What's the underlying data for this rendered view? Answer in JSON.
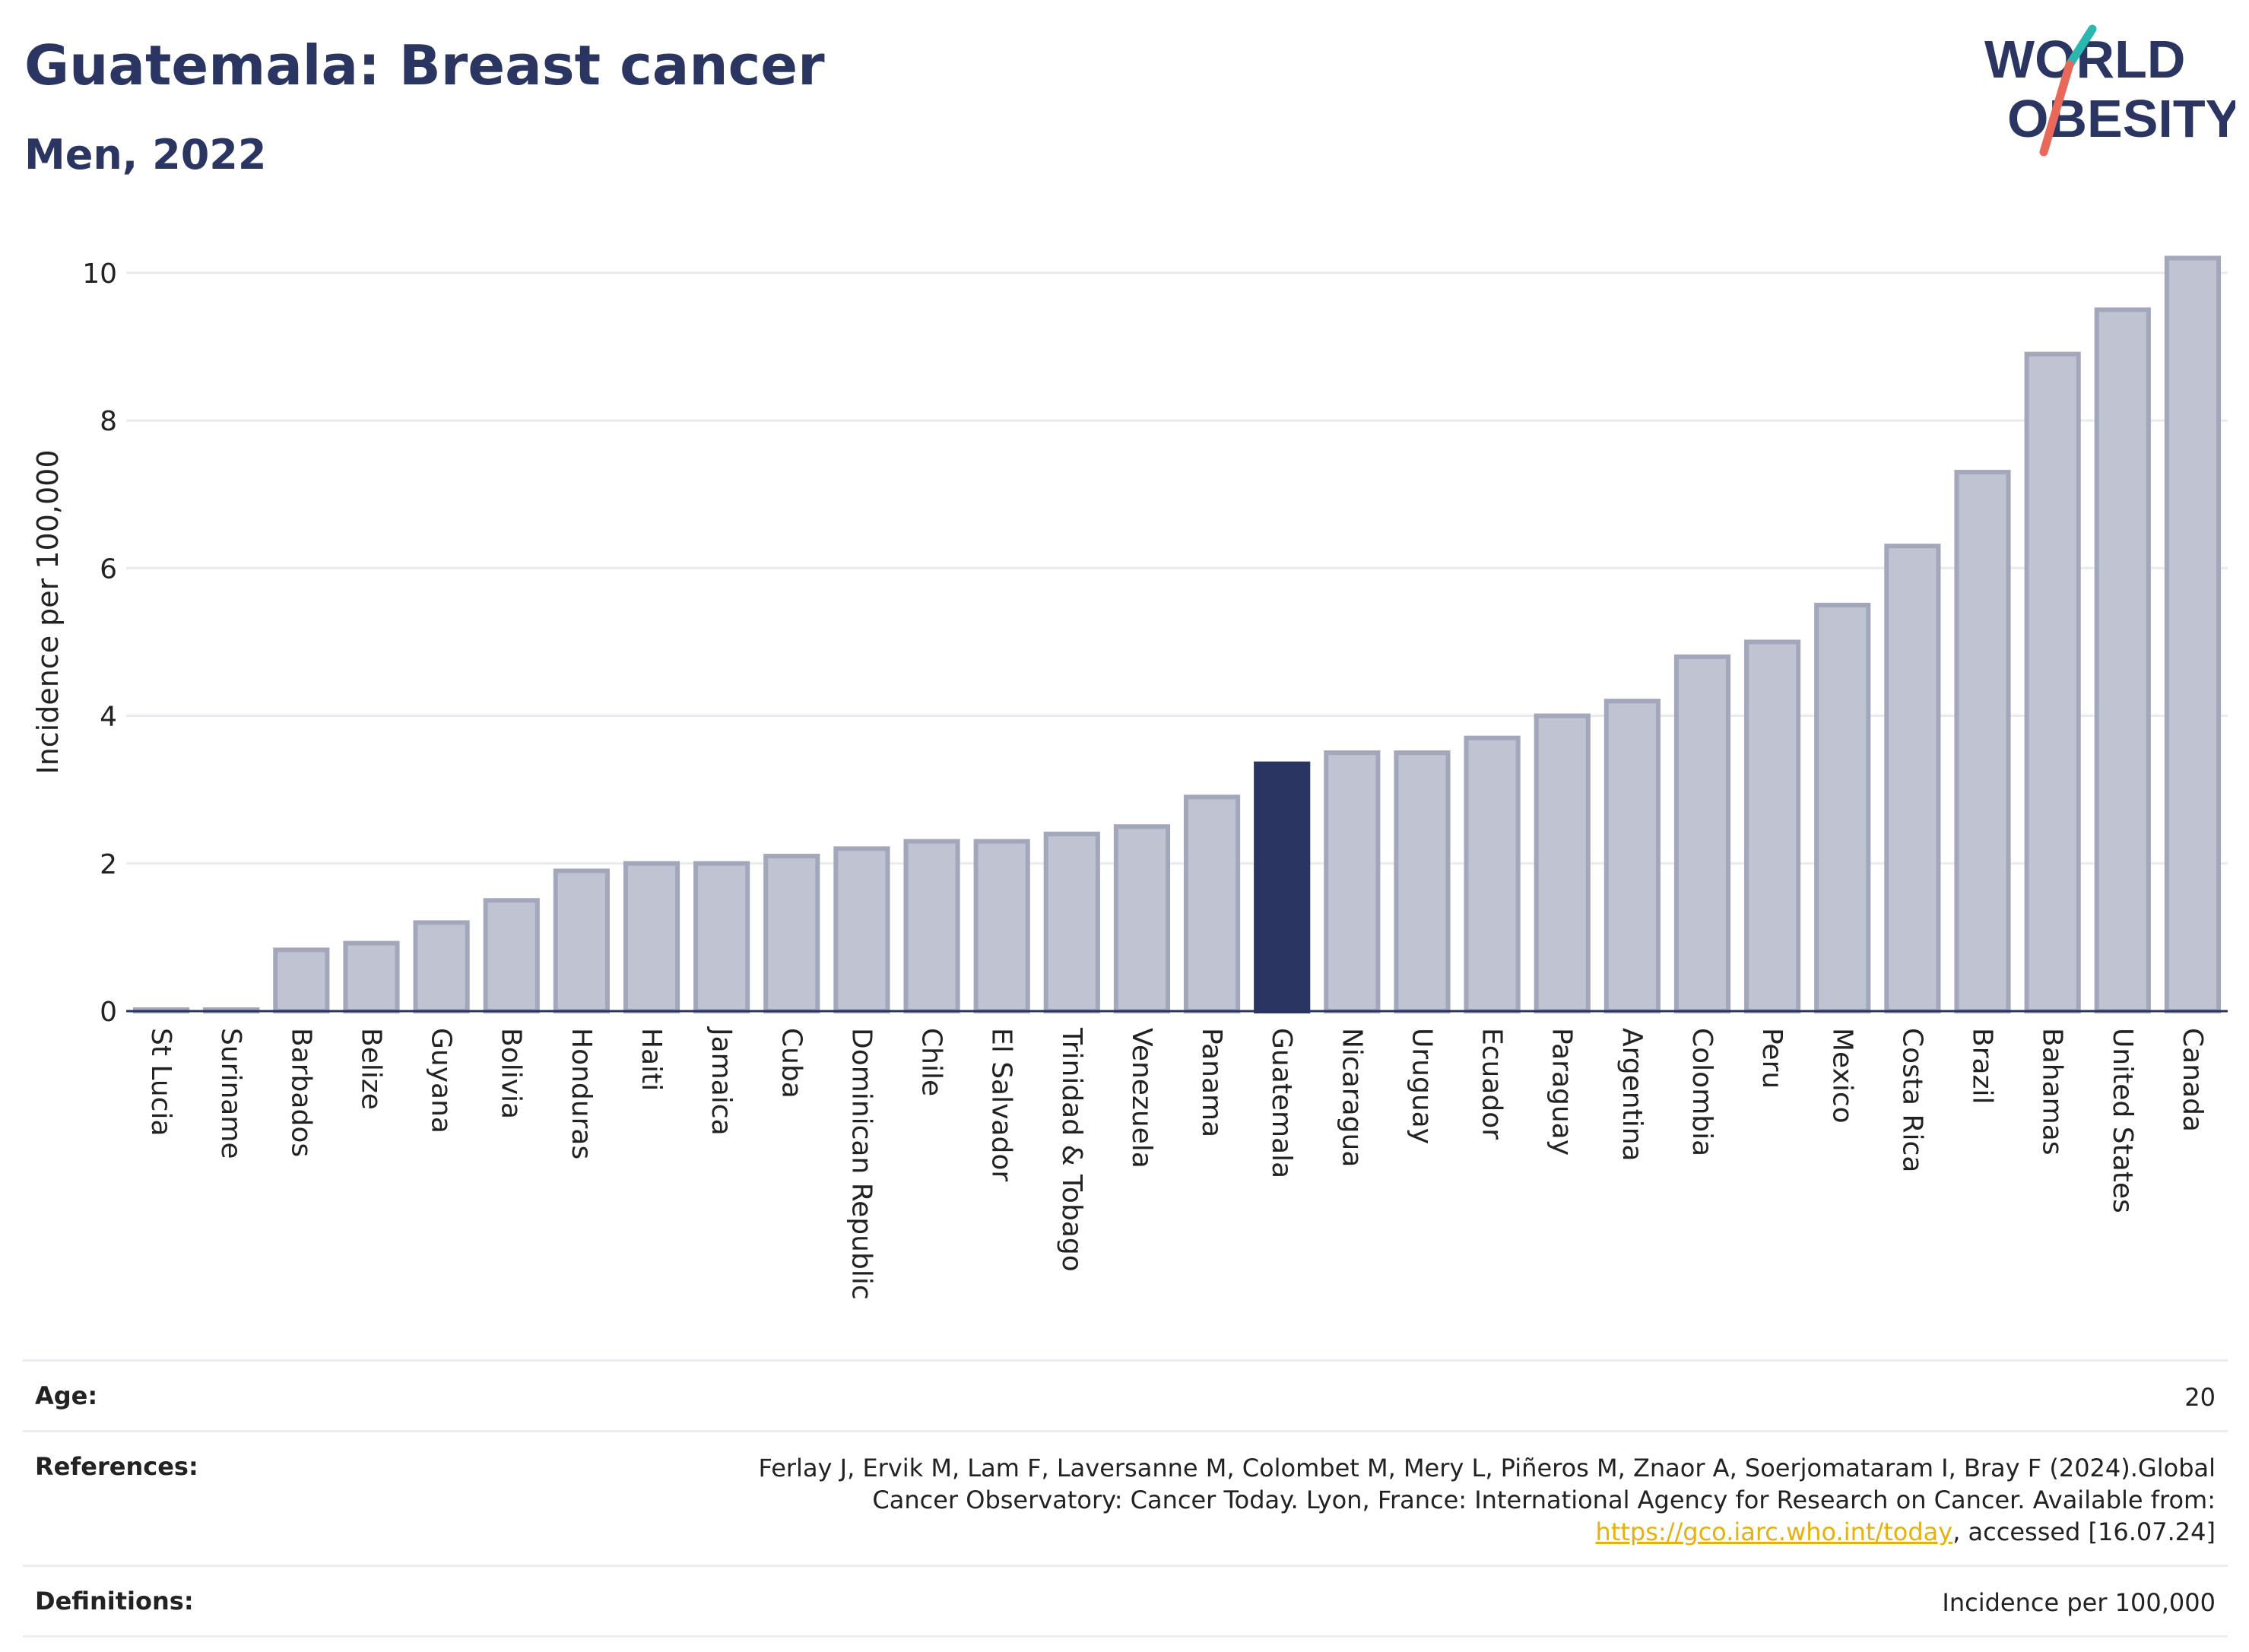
{
  "title": "Guatemala: Breast cancer",
  "subtitle": "Men, 2022",
  "logo": {
    "line1": "WORLD",
    "line2": "OBESITY",
    "accent_teal": "#2ab7b0",
    "accent_coral": "#e8685a"
  },
  "colors": {
    "bar": "#c0c3d1",
    "bar_stroke": "#a2a7bc",
    "highlight": "#2b3561",
    "grid": "#e8eaee",
    "axis": "#2b3561"
  },
  "chart_data": {
    "type": "bar",
    "ylabel": "Incidence per 100,000",
    "ylim": [
      0,
      10.4
    ],
    "yticks": [
      0,
      2,
      4,
      6,
      8,
      10
    ],
    "grid": true,
    "highlight": "Guatemala",
    "categories": [
      "St Lucia",
      "Suriname",
      "Barbados",
      "Belize",
      "Guyana",
      "Bolivia",
      "Honduras",
      "Haiti",
      "Jamaica",
      "Cuba",
      "Dominican Republic",
      "Chile",
      "El Salvador",
      "Trinidad & Tobago",
      "Venezuela",
      "Panama",
      "Guatemala",
      "Nicaragua",
      "Uruguay",
      "Ecuador",
      "Paraguay",
      "Argentina",
      "Colombia",
      "Peru",
      "Mexico",
      "Costa Rica",
      "Brazil",
      "Bahamas",
      "United States",
      "Canada"
    ],
    "values": [
      0.02,
      0.02,
      0.83,
      0.92,
      1.2,
      1.5,
      1.9,
      2.0,
      2.0,
      2.1,
      2.2,
      2.3,
      2.3,
      2.4,
      2.5,
      2.9,
      3.35,
      3.5,
      3.5,
      3.7,
      4.0,
      4.2,
      4.8,
      5.0,
      5.5,
      6.3,
      7.3,
      8.9,
      9.5,
      10.2
    ]
  },
  "info": {
    "age_label": "Age:",
    "age_value": "20",
    "references_label": "References:",
    "references_text": "Ferlay J, Ervik M, Lam F, Laversanne M, Colombet M, Mery L, Piñeros M, Znaor A, Soerjomataram I, Bray F (2024).Global Cancer Observatory: Cancer Today. Lyon, France: International Agency for Research on Cancer. Available from: ",
    "references_link": "https://gco.iarc.who.int/today",
    "references_suffix": ", accessed [16.07.24]",
    "definitions_label": "Definitions:",
    "definitions_value": "Incidence per 100,000"
  }
}
